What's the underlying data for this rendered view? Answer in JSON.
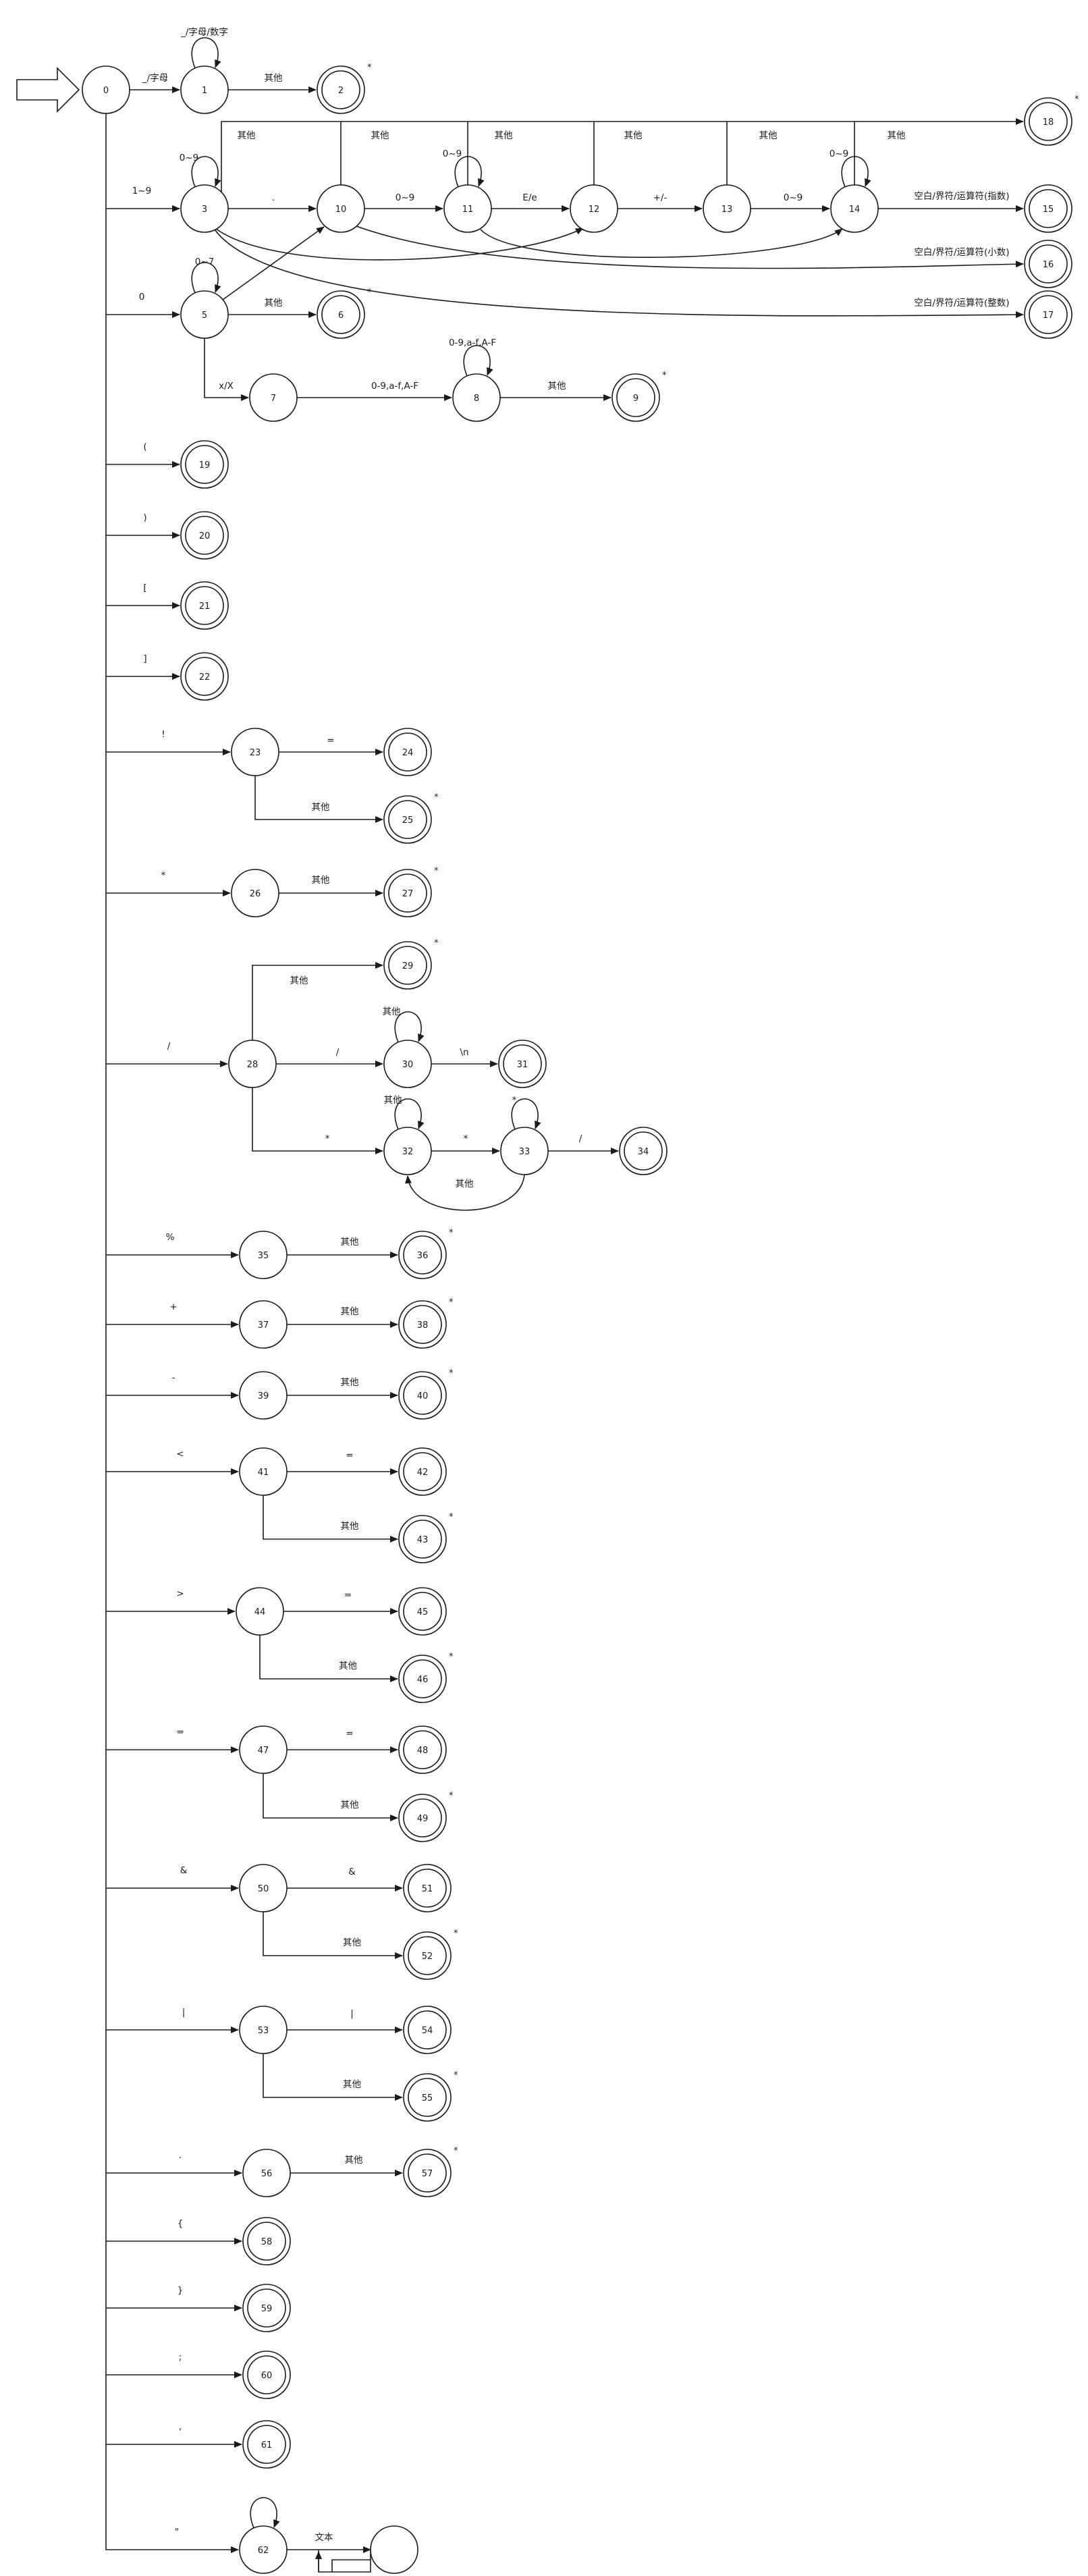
{
  "start_label": "",
  "nodes": [
    {
      "id": "0"
    },
    {
      "id": "1"
    },
    {
      "id": "2",
      "accept": true,
      "star": true
    },
    {
      "id": "3"
    },
    {
      "id": "5"
    },
    {
      "id": "6",
      "accept": true,
      "star": true
    },
    {
      "id": "7"
    },
    {
      "id": "8"
    },
    {
      "id": "9",
      "accept": true,
      "star": true
    },
    {
      "id": "10"
    },
    {
      "id": "11"
    },
    {
      "id": "12"
    },
    {
      "id": "13"
    },
    {
      "id": "14"
    },
    {
      "id": "15",
      "accept": true
    },
    {
      "id": "16",
      "accept": true
    },
    {
      "id": "17",
      "accept": true
    },
    {
      "id": "18",
      "accept": true,
      "star": true
    },
    {
      "id": "19",
      "accept": true
    },
    {
      "id": "20",
      "accept": true
    },
    {
      "id": "21",
      "accept": true
    },
    {
      "id": "22",
      "accept": true
    },
    {
      "id": "23"
    },
    {
      "id": "24",
      "accept": true
    },
    {
      "id": "25",
      "accept": true,
      "star": true
    },
    {
      "id": "26"
    },
    {
      "id": "27",
      "accept": true,
      "star": true
    },
    {
      "id": "28"
    },
    {
      "id": "29",
      "accept": true,
      "star": true
    },
    {
      "id": "30"
    },
    {
      "id": "31",
      "accept": true
    },
    {
      "id": "32"
    },
    {
      "id": "33"
    },
    {
      "id": "34",
      "accept": true
    },
    {
      "id": "35"
    },
    {
      "id": "36",
      "accept": true,
      "star": true
    },
    {
      "id": "37"
    },
    {
      "id": "38",
      "accept": true,
      "star": true
    },
    {
      "id": "39"
    },
    {
      "id": "40",
      "accept": true,
      "star": true
    },
    {
      "id": "41"
    },
    {
      "id": "42",
      "accept": true
    },
    {
      "id": "43",
      "accept": true,
      "star": true
    },
    {
      "id": "44"
    },
    {
      "id": "45",
      "accept": true
    },
    {
      "id": "46",
      "accept": true,
      "star": true
    },
    {
      "id": "47"
    },
    {
      "id": "48",
      "accept": true
    },
    {
      "id": "49",
      "accept": true,
      "star": true
    },
    {
      "id": "50"
    },
    {
      "id": "51",
      "accept": true
    },
    {
      "id": "52",
      "accept": true,
      "star": true
    },
    {
      "id": "53"
    },
    {
      "id": "54",
      "accept": true
    },
    {
      "id": "55",
      "accept": true,
      "star": true
    },
    {
      "id": "56"
    },
    {
      "id": "57",
      "accept": true,
      "star": true
    },
    {
      "id": "58",
      "accept": true
    },
    {
      "id": "59",
      "accept": true
    },
    {
      "id": "60",
      "accept": true
    },
    {
      "id": "61",
      "accept": true
    },
    {
      "id": "62"
    },
    {
      "id": "63"
    }
  ],
  "edge_labels": {
    "e0_1": "_/字母",
    "e1_self": "_/字母/数字",
    "e1_2": "其他",
    "e0_3": "1~9",
    "e3_self": "0~9",
    "e3_10": ".",
    "e10_11": "0~9",
    "e11_self": "0~9",
    "e11_12": "E/e",
    "e12_13": "+/-",
    "e13_14": "0~9",
    "e14_self": "0~9",
    "e14_15": "空白/界符/运算符(指数)",
    "e10_16": "空白/界符/运算符(小数)",
    "e3_17": "空白/界符/运算符(整数)",
    "e3_18": "其他",
    "e10_18": "其他",
    "e11_18": "其他",
    "e12_18": "其他",
    "e13_18": "其他",
    "e14_18": "其他",
    "e0_5": "0",
    "e5_self": "0~7",
    "e5_6": "其他",
    "e5_7": "x/X",
    "e7_8": "0-9,a-f,A-F",
    "e8_self": "0-9,a-f,A-F",
    "e8_9": "其他",
    "e0_19": "(",
    "e0_20": ")",
    "e0_21": "[",
    "e0_22": "]",
    "e0_23": "!",
    "e23_24": "=",
    "e23_25": "其他",
    "e0_26": "*",
    "e26_27": "其他",
    "e0_28": "/",
    "e28_29": "其他",
    "e28_30": "/",
    "e30_self": "其他",
    "e30_31": "\\n",
    "e28_32": "*",
    "e32_self": "其他",
    "e32_33": "*",
    "e33_self": "*",
    "e33_32": "其他",
    "e33_34": "/",
    "e0_35": "%",
    "e35_36": "其他",
    "e0_37": "+",
    "e37_38": "其他",
    "e0_39": "-",
    "e39_40": "其他",
    "e0_41": "<",
    "e41_42": "=",
    "e41_43": "其他",
    "e0_44": ">",
    "e44_45": "=",
    "e44_46": "其他",
    "e0_47": "=",
    "e47_48": "=",
    "e47_49": "其他",
    "e0_50": "&",
    "e50_51": "&",
    "e50_52": "其他",
    "e0_53": "|",
    "e53_54": "|",
    "e53_55": "其他",
    "e0_56": ".",
    "e56_57": "其他",
    "e0_58": "{",
    "e0_59": "}",
    "e0_60": ";",
    "e0_61": ",",
    "e0_62": "\"",
    "e62_63": "文本"
  },
  "star_mark": "*"
}
